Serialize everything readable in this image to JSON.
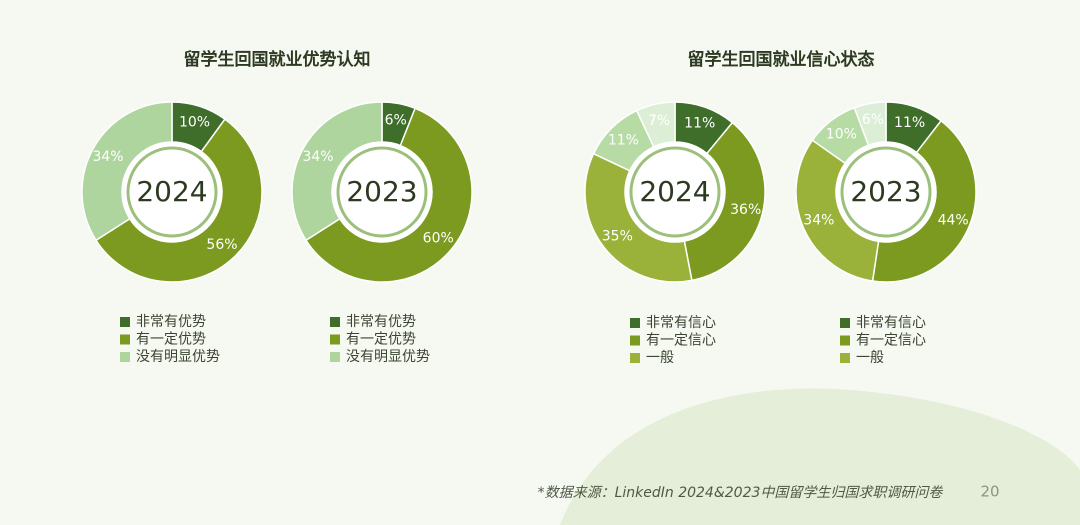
{
  "chart_data": [
    {
      "type": "donut",
      "title": "留学生回国就业优势认知",
      "center_label": "2024",
      "categories": [
        "非常有优势",
        "有一定优势",
        "没有明显优势"
      ],
      "values": [
        10,
        56,
        34
      ],
      "value_labels": [
        "10%",
        "56%",
        "34%"
      ],
      "colors": [
        "#3f6e2b",
        "#7b9a1f",
        "#afd59e"
      ]
    },
    {
      "type": "donut",
      "center_label": "2023",
      "categories": [
        "非常有优势",
        "有一定优势",
        "没有明显优势"
      ],
      "values": [
        6,
        60,
        34
      ],
      "value_labels": [
        "6%",
        "60%",
        "34%"
      ],
      "colors": [
        "#3f6e2b",
        "#7b9a1f",
        "#afd59e"
      ]
    },
    {
      "type": "donut",
      "title": "留学生回国就业信心状态",
      "center_label": "2024",
      "categories": [
        "非常有信心",
        "有一定信心",
        "一般",
        null,
        null
      ],
      "values": [
        11,
        36,
        35,
        11,
        7
      ],
      "value_labels": [
        "11%",
        "36%",
        "35%",
        "11%",
        "7%"
      ],
      "colors": [
        "#3f6e2b",
        "#7b9a1f",
        "#9bb23a",
        "#b6dba4",
        "#dcefd6"
      ]
    },
    {
      "type": "donut",
      "center_label": "2023",
      "categories": [
        "非常有信心",
        "有一定信心",
        "一般",
        null,
        null
      ],
      "values": [
        11,
        44,
        34,
        10,
        6
      ],
      "value_labels": [
        "11%",
        "44%",
        "34%",
        "10%",
        "6%"
      ],
      "colors": [
        "#3f6e2b",
        "#7b9a1f",
        "#9bb23a",
        "#b6dba4",
        "#dcefd6"
      ]
    }
  ],
  "source": "*数据来源：LinkedIn 2024&2023中国留学生归国求职调研问卷",
  "page_number": "20"
}
